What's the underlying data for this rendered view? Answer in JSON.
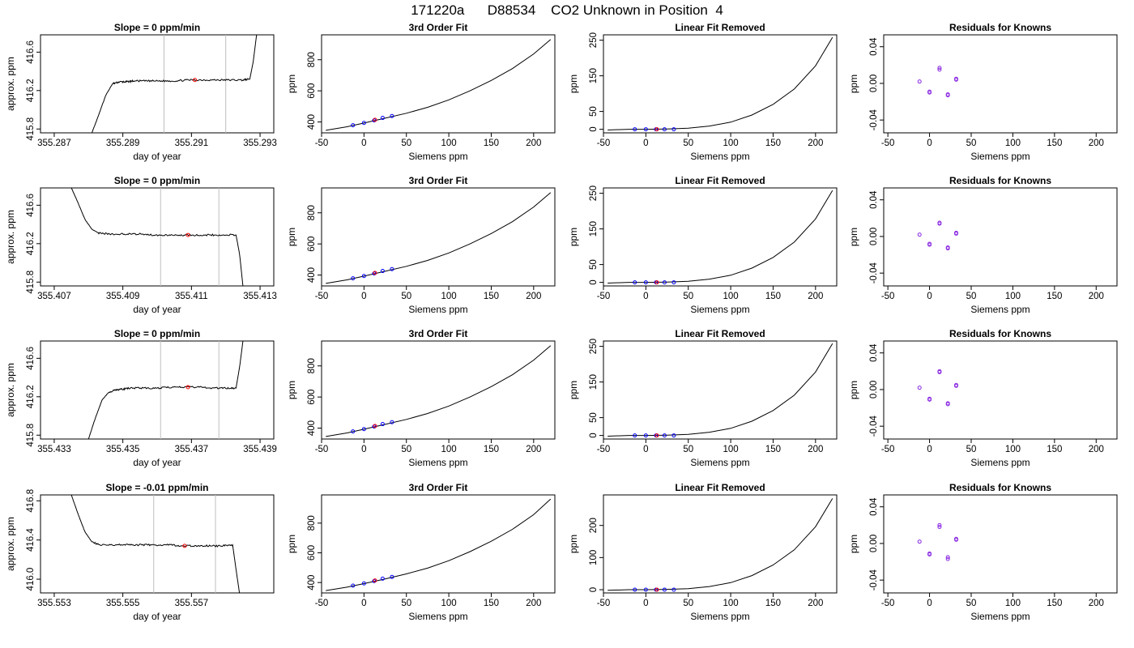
{
  "figure": {
    "title": "171220a      D88534    CO2 Unknown in Position  4",
    "background": "#ffffff"
  },
  "colors": {
    "line": "#000000",
    "marker_blue": "#0000ff",
    "marker_red": "#ff0000",
    "marker_violet": "#8a2be2",
    "window": "#bebebe"
  },
  "common": {
    "x_label_siemens": "Siemens ppm",
    "x_label_doy": "day of year",
    "y_label_ppm": "ppm",
    "y_label_approx": "approx. ppm",
    "title_fit": "3rd Order Fit",
    "title_lin": "Linear Fit Removed",
    "title_res": "Residuals for Knowns"
  },
  "chart_data": [
    {
      "row": 0,
      "col": 0,
      "type": "line",
      "title": "Slope =  0  ppm/min",
      "xlabel": "day of year",
      "ylabel": "approx. ppm",
      "xlim": [
        355.2866,
        355.2934
      ],
      "ylim": [
        415.76,
        416.78
      ],
      "xticks": [
        355.287,
        355.289,
        355.291,
        355.293
      ],
      "xtick_labels": [
        "355.287",
        "355.289",
        "355.291",
        "355.293"
      ],
      "yticks": [
        415.8,
        416.2,
        416.6
      ],
      "ytick_labels": [
        "415.8",
        "416.2",
        "416.6"
      ],
      "trace_x": [
        355.2881,
        355.2883,
        355.2885,
        355.2887,
        355.2889,
        355.2891,
        355.2893,
        355.2897,
        355.2901,
        355.2905,
        355.2909,
        355.2913,
        355.2917,
        355.2921,
        355.2925,
        355.2927,
        355.2928,
        355.2929
      ],
      "trace_y": [
        415.76,
        415.95,
        416.15,
        416.27,
        416.29,
        416.29,
        416.3,
        416.3,
        416.3,
        416.3,
        416.31,
        416.31,
        416.31,
        416.31,
        416.31,
        416.32,
        416.5,
        416.78
      ],
      "plateau": 416.31,
      "windows": [
        355.2902,
        355.292
      ],
      "marker": [
        355.2911,
        416.31
      ]
    },
    {
      "row": 0,
      "col": 1,
      "type": "line",
      "title": "3rd Order Fit",
      "xlabel": "Siemens ppm",
      "ylabel": "ppm",
      "xlim": [
        -50,
        225
      ],
      "ylim": [
        330,
        960
      ],
      "xticks": [
        -50,
        0,
        50,
        100,
        150,
        200
      ],
      "xtick_labels": [
        "-50",
        "0",
        "50",
        "100",
        "150",
        "200"
      ],
      "yticks": [
        400,
        600,
        800
      ],
      "ytick_labels": [
        "400",
        "600",
        "800"
      ],
      "curve_x": [
        -45,
        -20,
        0,
        25,
        50,
        75,
        100,
        125,
        150,
        175,
        200,
        220
      ],
      "curve_y": [
        346,
        369,
        393,
        424,
        456,
        494,
        542,
        600,
        667,
        743,
        837,
        930
      ],
      "knowns_x": [
        -13,
        0,
        12,
        22,
        33
      ],
      "knowns_y": [
        379,
        394,
        410,
        426,
        438
      ],
      "unknown": [
        13,
        414
      ]
    },
    {
      "row": 0,
      "col": 2,
      "type": "line",
      "title": "Linear Fit Removed",
      "xlabel": "Siemens ppm",
      "ylabel": "ppm",
      "xlim": [
        -50,
        225
      ],
      "ylim": [
        -10,
        265
      ],
      "xticks": [
        -50,
        0,
        50,
        100,
        150,
        200
      ],
      "xtick_labels": [
        "-50",
        "0",
        "50",
        "100",
        "150",
        "200"
      ],
      "yticks": [
        0,
        50,
        150,
        250
      ],
      "ytick_labels": [
        "0",
        "50",
        "150",
        "250"
      ],
      "curve_x": [
        -45,
        -20,
        0,
        25,
        50,
        75,
        100,
        125,
        150,
        175,
        200,
        220
      ],
      "curve_y": [
        -2,
        0,
        0,
        1,
        3,
        9,
        20,
        40,
        70,
        113,
        178,
        258
      ],
      "knowns_x": [
        -13,
        0,
        12,
        22,
        33
      ],
      "knowns_y": [
        0,
        0,
        0,
        0,
        0
      ],
      "unknown": [
        13,
        0
      ]
    },
    {
      "row": 0,
      "col": 3,
      "type": "scatter",
      "title": "Residuals for Knowns",
      "xlabel": "Siemens ppm",
      "ylabel": "ppm",
      "xlim": [
        -55,
        225
      ],
      "ylim": [
        -0.054,
        0.053
      ],
      "xticks": [
        -50,
        0,
        50,
        100,
        150,
        200
      ],
      "xtick_labels": [
        "-50",
        "0",
        "50",
        "100",
        "150",
        "200"
      ],
      "yticks": [
        -0.04,
        0.0,
        0.04
      ],
      "ytick_labels": [
        "-0.04",
        "0.00",
        "0.04"
      ],
      "knowns_x": [
        -12,
        0,
        0,
        12,
        12,
        22,
        22,
        32,
        32
      ],
      "knowns_y": [
        0.002,
        -0.01,
        -0.009,
        0.017,
        0.015,
        -0.012,
        -0.013,
        0.005,
        0.004
      ]
    },
    {
      "row": 1,
      "col": 0,
      "type": "line",
      "title": "Slope =  0  ppm/min",
      "xlabel": "day of year",
      "ylabel": "approx. ppm",
      "xlim": [
        355.4066,
        355.4134
      ],
      "ylim": [
        415.76,
        416.78
      ],
      "xticks": [
        355.407,
        355.409,
        355.411,
        355.413
      ],
      "xtick_labels": [
        "355.407",
        "355.409",
        "355.411",
        "355.413"
      ],
      "yticks": [
        415.8,
        416.2,
        416.6
      ],
      "ytick_labels": [
        "415.8",
        "416.2",
        "416.6"
      ],
      "trace_x": [
        355.4075,
        355.4077,
        355.4079,
        355.4081,
        355.4083,
        355.4087,
        355.4091,
        355.4095,
        355.4099,
        355.4103,
        355.4107,
        355.4111,
        355.4115,
        355.4119,
        355.4123,
        355.4124,
        355.4125
      ],
      "trace_y": [
        416.78,
        416.62,
        416.45,
        416.35,
        416.31,
        416.3,
        416.3,
        416.3,
        416.29,
        416.29,
        416.29,
        416.29,
        416.29,
        416.29,
        416.29,
        416.1,
        415.76
      ],
      "plateau": 416.29,
      "windows": [
        355.4101,
        355.4118
      ],
      "marker": [
        355.4109,
        416.29
      ]
    },
    {
      "row": 1,
      "col": 1,
      "type": "line",
      "title": "3rd Order Fit",
      "xlabel": "Siemens ppm",
      "ylabel": "ppm",
      "xlim": [
        -50,
        225
      ],
      "ylim": [
        330,
        960
      ],
      "xticks": [
        -50,
        0,
        50,
        100,
        150,
        200
      ],
      "xtick_labels": [
        "-50",
        "0",
        "50",
        "100",
        "150",
        "200"
      ],
      "yticks": [
        400,
        600,
        800
      ],
      "ytick_labels": [
        "400",
        "600",
        "800"
      ],
      "curve_x": [
        -45,
        -20,
        0,
        25,
        50,
        75,
        100,
        125,
        150,
        175,
        200,
        220
      ],
      "curve_y": [
        346,
        369,
        393,
        424,
        456,
        494,
        542,
        600,
        667,
        743,
        837,
        930
      ],
      "knowns_x": [
        -13,
        0,
        12,
        22,
        33
      ],
      "knowns_y": [
        379,
        394,
        410,
        426,
        438
      ],
      "unknown": [
        13,
        414
      ]
    },
    {
      "row": 1,
      "col": 2,
      "type": "line",
      "title": "Linear Fit Removed",
      "xlabel": "Siemens ppm",
      "ylabel": "ppm",
      "xlim": [
        -50,
        225
      ],
      "ylim": [
        -10,
        265
      ],
      "xticks": [
        -50,
        0,
        50,
        100,
        150,
        200
      ],
      "xtick_labels": [
        "-50",
        "0",
        "50",
        "100",
        "150",
        "200"
      ],
      "yticks": [
        0,
        50,
        150,
        250
      ],
      "ytick_labels": [
        "0",
        "50",
        "150",
        "250"
      ],
      "curve_x": [
        -45,
        -20,
        0,
        25,
        50,
        75,
        100,
        125,
        150,
        175,
        200,
        220
      ],
      "curve_y": [
        -2,
        0,
        0,
        1,
        3,
        9,
        20,
        40,
        70,
        113,
        178,
        258
      ],
      "knowns_x": [
        -13,
        0,
        12,
        22,
        33
      ],
      "knowns_y": [
        0,
        0,
        0,
        0,
        0
      ],
      "unknown": [
        13,
        0
      ]
    },
    {
      "row": 1,
      "col": 3,
      "type": "scatter",
      "title": "Residuals for Knowns",
      "xlabel": "Siemens ppm",
      "ylabel": "ppm",
      "xlim": [
        -55,
        225
      ],
      "ylim": [
        -0.054,
        0.053
      ],
      "xticks": [
        -50,
        0,
        50,
        100,
        150,
        200
      ],
      "xtick_labels": [
        "-50",
        "0",
        "50",
        "100",
        "150",
        "200"
      ],
      "yticks": [
        -0.04,
        0.0,
        0.04
      ],
      "ytick_labels": [
        "-0.04",
        "0.00",
        "0.04"
      ],
      "knowns_x": [
        -12,
        0,
        0,
        12,
        12,
        22,
        22,
        32,
        32
      ],
      "knowns_y": [
        0.002,
        -0.009,
        -0.008,
        0.015,
        0.014,
        -0.012,
        -0.013,
        0.004,
        0.003
      ]
    },
    {
      "row": 2,
      "col": 0,
      "type": "line",
      "title": "Slope =  0  ppm/min",
      "xlabel": "day of year",
      "ylabel": "approx. ppm",
      "xlim": [
        355.4326,
        355.4394
      ],
      "ylim": [
        415.76,
        416.78
      ],
      "xticks": [
        355.433,
        355.435,
        355.437,
        355.439
      ],
      "xtick_labels": [
        "355.433",
        "355.435",
        "355.437",
        "355.439"
      ],
      "yticks": [
        415.8,
        416.2,
        416.6
      ],
      "ytick_labels": [
        "415.8",
        "416.2",
        "416.6"
      ],
      "trace_x": [
        355.434,
        355.4342,
        355.4344,
        355.4346,
        355.4348,
        355.435,
        355.4352,
        355.4356,
        355.436,
        355.4364,
        355.4368,
        355.4372,
        355.4376,
        355.438,
        355.4383,
        355.4384,
        355.4385
      ],
      "trace_y": [
        415.76,
        415.98,
        416.17,
        416.25,
        416.27,
        416.28,
        416.29,
        416.29,
        416.29,
        416.3,
        416.3,
        416.3,
        416.29,
        416.29,
        416.29,
        416.5,
        416.78
      ],
      "plateau": 416.29,
      "windows": [
        355.4361,
        355.4378
      ],
      "marker": [
        355.4369,
        416.3
      ]
    },
    {
      "row": 2,
      "col": 1,
      "type": "line",
      "title": "3rd Order Fit",
      "xlabel": "Siemens ppm",
      "ylabel": "ppm",
      "xlim": [
        -50,
        225
      ],
      "ylim": [
        330,
        960
      ],
      "xticks": [
        -50,
        0,
        50,
        100,
        150,
        200
      ],
      "xtick_labels": [
        "-50",
        "0",
        "50",
        "100",
        "150",
        "200"
      ],
      "yticks": [
        400,
        600,
        800
      ],
      "ytick_labels": [
        "400",
        "600",
        "800"
      ],
      "curve_x": [
        -45,
        -20,
        0,
        25,
        50,
        75,
        100,
        125,
        150,
        175,
        200,
        220
      ],
      "curve_y": [
        346,
        369,
        393,
        424,
        456,
        494,
        542,
        600,
        667,
        743,
        837,
        930
      ],
      "knowns_x": [
        -13,
        0,
        12,
        22,
        33
      ],
      "knowns_y": [
        379,
        394,
        410,
        426,
        438
      ],
      "unknown": [
        13,
        414
      ]
    },
    {
      "row": 2,
      "col": 2,
      "type": "line",
      "title": "Linear Fit Removed",
      "xlabel": "Siemens ppm",
      "ylabel": "ppm",
      "xlim": [
        -50,
        225
      ],
      "ylim": [
        -10,
        265
      ],
      "xticks": [
        -50,
        0,
        50,
        100,
        150,
        200
      ],
      "xtick_labels": [
        "-50",
        "0",
        "50",
        "100",
        "150",
        "200"
      ],
      "yticks": [
        0,
        50,
        150,
        250
      ],
      "ytick_labels": [
        "0",
        "50",
        "150",
        "250"
      ],
      "curve_x": [
        -45,
        -20,
        0,
        25,
        50,
        75,
        100,
        125,
        150,
        175,
        200,
        220
      ],
      "curve_y": [
        -2,
        0,
        0,
        1,
        3,
        9,
        20,
        40,
        70,
        113,
        178,
        258
      ],
      "knowns_x": [
        -13,
        0,
        12,
        22,
        33
      ],
      "knowns_y": [
        0,
        0,
        0,
        0,
        0
      ],
      "unknown": [
        13,
        0
      ]
    },
    {
      "row": 2,
      "col": 3,
      "type": "scatter",
      "title": "Residuals for Knowns",
      "xlabel": "Siemens ppm",
      "ylabel": "ppm",
      "xlim": [
        -55,
        225
      ],
      "ylim": [
        -0.054,
        0.053
      ],
      "xticks": [
        -50,
        0,
        50,
        100,
        150,
        200
      ],
      "xtick_labels": [
        "-50",
        "0",
        "50",
        "100",
        "150",
        "200"
      ],
      "yticks": [
        -0.04,
        0.0,
        0.04
      ],
      "ytick_labels": [
        "-0.04",
        "0.00",
        "0.04"
      ],
      "knowns_x": [
        -12,
        0,
        0,
        12,
        12,
        22,
        22,
        32,
        32
      ],
      "knowns_y": [
        0.002,
        -0.011,
        -0.01,
        0.02,
        0.019,
        -0.015,
        -0.016,
        0.005,
        0.004
      ]
    },
    {
      "row": 3,
      "col": 0,
      "type": "line",
      "title": "Slope =  -0.01  ppm/min",
      "xlabel": "day of year",
      "ylabel": "approx. ppm",
      "xlim": [
        355.5526,
        355.5594
      ],
      "ylim": [
        415.86,
        416.86
      ],
      "xticks": [
        355.553,
        355.555,
        355.557
      ],
      "xtick_labels": [
        "355.553",
        "355.555",
        "355.557"
      ],
      "yticks": [
        416.0,
        416.4,
        416.8
      ],
      "ytick_labels": [
        "416.0",
        "416.4",
        "416.8"
      ],
      "trace_x": [
        355.5535,
        355.5537,
        355.5539,
        355.5541,
        355.5543,
        355.5547,
        355.5551,
        355.5555,
        355.5559,
        355.5563,
        355.5567,
        355.5571,
        355.5575,
        355.5579,
        355.5582,
        355.5583,
        355.5584
      ],
      "trace_y": [
        416.86,
        416.66,
        416.48,
        416.38,
        416.35,
        416.35,
        416.35,
        416.35,
        416.35,
        416.35,
        416.34,
        416.34,
        416.34,
        416.34,
        416.35,
        416.1,
        415.86
      ],
      "plateau": 416.35,
      "windows": [
        355.5559,
        355.5577
      ],
      "marker": [
        355.5568,
        416.34
      ]
    },
    {
      "row": 3,
      "col": 1,
      "type": "line",
      "title": "3rd Order Fit",
      "xlabel": "Siemens ppm",
      "ylabel": "ppm",
      "xlim": [
        -50,
        225
      ],
      "ylim": [
        330,
        990
      ],
      "xticks": [
        -50,
        0,
        50,
        100,
        150,
        200
      ],
      "xtick_labels": [
        "-50",
        "0",
        "50",
        "100",
        "150",
        "200"
      ],
      "yticks": [
        400,
        600,
        800
      ],
      "ytick_labels": [
        "400",
        "600",
        "800"
      ],
      "curve_x": [
        -45,
        -20,
        0,
        25,
        50,
        75,
        100,
        125,
        150,
        175,
        200,
        220
      ],
      "curve_y": [
        346,
        369,
        393,
        424,
        458,
        497,
        547,
        608,
        678,
        758,
        857,
        962
      ],
      "knowns_x": [
        -13,
        0,
        12,
        22,
        33
      ],
      "knowns_y": [
        379,
        394,
        410,
        426,
        438
      ],
      "unknown": [
        13,
        414
      ]
    },
    {
      "row": 3,
      "col": 2,
      "type": "line",
      "title": "Linear Fit Removed",
      "xlabel": "Siemens ppm",
      "ylabel": "ppm",
      "xlim": [
        -50,
        225
      ],
      "ylim": [
        -10,
        295
      ],
      "xticks": [
        -50,
        0,
        50,
        100,
        150,
        200
      ],
      "xtick_labels": [
        "-50",
        "0",
        "50",
        "100",
        "150",
        "200"
      ],
      "yticks": [
        0,
        100,
        200
      ],
      "ytick_labels": [
        "0",
        "100",
        "200"
      ],
      "curve_x": [
        -45,
        -20,
        0,
        25,
        50,
        75,
        100,
        125,
        150,
        175,
        200,
        220
      ],
      "curve_y": [
        -2,
        0,
        0,
        1,
        3,
        10,
        22,
        44,
        77,
        124,
        196,
        284
      ],
      "knowns_x": [
        -13,
        0,
        12,
        22,
        33
      ],
      "knowns_y": [
        0,
        0,
        0,
        0,
        0
      ],
      "unknown": [
        13,
        0
      ]
    },
    {
      "row": 3,
      "col": 3,
      "type": "scatter",
      "title": "Residuals for Knowns",
      "xlabel": "Siemens ppm",
      "ylabel": "ppm",
      "xlim": [
        -55,
        225
      ],
      "ylim": [
        -0.054,
        0.053
      ],
      "xticks": [
        -50,
        0,
        50,
        100,
        150,
        200
      ],
      "xtick_labels": [
        "-50",
        "0",
        "50",
        "100",
        "150",
        "200"
      ],
      "yticks": [
        -0.04,
        0.0,
        0.04
      ],
      "ytick_labels": [
        "-0.04",
        "0.00",
        "0.04"
      ],
      "knowns_x": [
        -12,
        0,
        0,
        12,
        12,
        22,
        22,
        32,
        32
      ],
      "knowns_y": [
        0.002,
        -0.011,
        -0.012,
        0.02,
        0.018,
        -0.015,
        -0.017,
        0.005,
        0.004
      ]
    }
  ]
}
